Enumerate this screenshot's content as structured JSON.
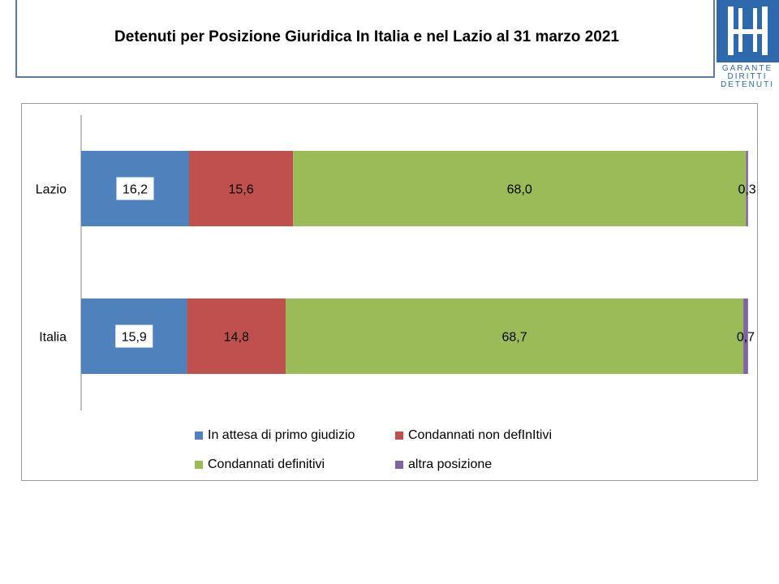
{
  "header": {
    "title": "Detenuti per Posizione Giuridica  In Italia e nel Lazio al 31 marzo 2021",
    "logo_text": [
      "GARANTE",
      "DIRITTI",
      "DETENUTI"
    ]
  },
  "chart_data": {
    "type": "bar",
    "orientation": "horizontal",
    "stacked": true,
    "percent_stacked": true,
    "title": "Detenuti per Posizione Giuridica  In Italia e nel Lazio al 31 marzo 2021",
    "categories": [
      "Lazio",
      "Italia"
    ],
    "series": [
      {
        "name": "In attesa di primo giudizio",
        "color": "#4f81bd",
        "values": [
          16.2,
          15.9
        ],
        "labels": [
          "16,2",
          "15,9"
        ]
      },
      {
        "name": "Condannati non defInItivi",
        "color": "#c0504d",
        "values": [
          15.6,
          14.8
        ],
        "labels": [
          "15,6",
          "14,8"
        ]
      },
      {
        "name": "Condannati definitivi",
        "color": "#9bbb59",
        "values": [
          68.0,
          68.7
        ],
        "labels": [
          "68,0",
          "68,7"
        ]
      },
      {
        "name": "altra posizione",
        "color": "#8064a2",
        "values": [
          0.3,
          0.7
        ],
        "labels": [
          "0,3",
          "0,7"
        ]
      }
    ],
    "xlim": [
      0,
      100
    ],
    "grid": false,
    "legend_position": "bottom"
  }
}
